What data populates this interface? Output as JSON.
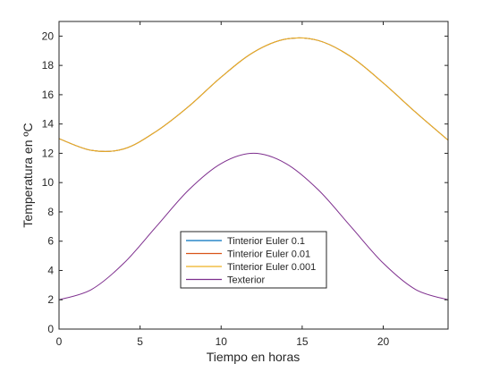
{
  "chart_data": {
    "type": "line",
    "title": "",
    "xlabel": "Tiempo en horas",
    "ylabel": "Temperatura en ºC",
    "xlim": [
      0,
      24
    ],
    "ylim": [
      0,
      21
    ],
    "xticks": [
      0,
      5,
      10,
      15,
      20
    ],
    "yticks": [
      0,
      2,
      4,
      6,
      8,
      10,
      12,
      14,
      16,
      18,
      20
    ],
    "grid": false,
    "legend_position": "lower-center",
    "x": [
      0,
      2,
      4,
      6,
      8,
      10,
      12,
      14,
      16,
      18,
      20,
      22,
      24
    ],
    "series": [
      {
        "name": "Tinterior Euler 0.1",
        "color": "#0072BD",
        "values": [
          13.0,
          12.2,
          12.3,
          13.5,
          15.2,
          17.2,
          18.9,
          19.8,
          19.7,
          18.6,
          16.8,
          14.8,
          12.9
        ]
      },
      {
        "name": "Tinterior Euler 0.01",
        "color": "#D95319",
        "values": [
          13.0,
          12.2,
          12.3,
          13.5,
          15.2,
          17.2,
          18.9,
          19.8,
          19.7,
          18.6,
          16.8,
          14.8,
          12.9
        ]
      },
      {
        "name": "Tinterior Euler 0.001",
        "color": "#EDB120",
        "values": [
          13.0,
          12.2,
          12.3,
          13.5,
          15.2,
          17.2,
          18.9,
          19.8,
          19.7,
          18.6,
          16.8,
          14.8,
          12.9
        ]
      },
      {
        "name": "Texterior",
        "color": "#7E2F8E",
        "values": [
          2.0,
          2.7,
          4.5,
          7.0,
          9.5,
          11.3,
          12.0,
          11.3,
          9.5,
          7.0,
          4.5,
          2.7,
          2.0
        ]
      }
    ]
  }
}
